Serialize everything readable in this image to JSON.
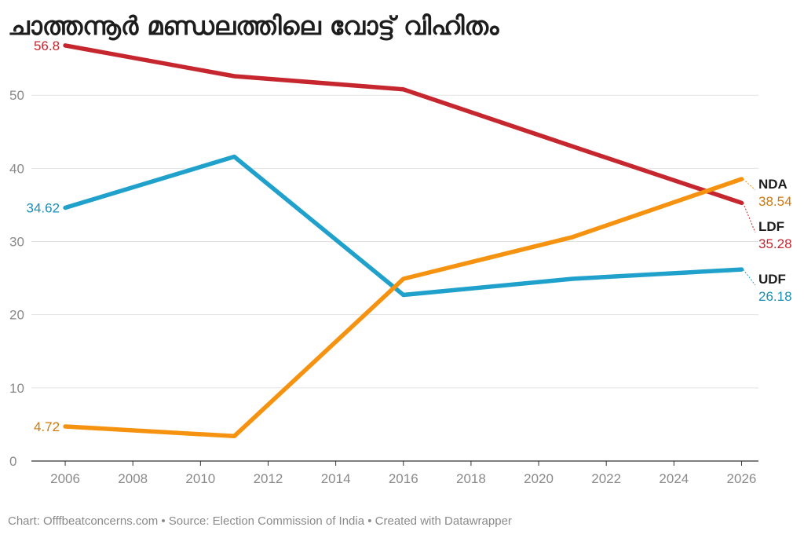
{
  "title": "ചാത്തന്നൂർ മണ്ഡലത്തിലെ വോട്ട് വിഹിതം",
  "footer": "Chart: Offfbeatconcerns.com • Source: Election Commission of India • Created with Datawrapper",
  "chart_data": {
    "type": "line",
    "title": "ചാത്തന്നൂർ മണ്ഡലത്തിലെ വോട്ട് വിഹിതം",
    "xlabel": "",
    "ylabel": "",
    "xlim": [
      2005,
      2026.5
    ],
    "ylim": [
      0,
      57
    ],
    "x_ticks": [
      "2006",
      "2008",
      "2010",
      "2012",
      "2014",
      "2016",
      "2018",
      "2020",
      "2022",
      "2024",
      "2026"
    ],
    "y_ticks": [
      "0",
      "10",
      "20",
      "30",
      "40",
      "50"
    ],
    "grid": true,
    "x": [
      2006,
      2011,
      2016,
      2021,
      2026
    ],
    "series": [
      {
        "name": "LDF",
        "color": "#c6262e",
        "values": [
          56.8,
          52.6,
          50.8,
          43.0,
          35.28
        ]
      },
      {
        "name": "UDF",
        "color": "#1fa1cc",
        "values": [
          34.62,
          41.6,
          22.7,
          24.9,
          26.18
        ]
      },
      {
        "name": "NDA",
        "color": "#f5920f",
        "values": [
          4.72,
          3.4,
          24.9,
          30.6,
          38.54
        ]
      }
    ],
    "start_labels": {
      "LDF": "56.8",
      "UDF": "34.62",
      "NDA": "4.72"
    },
    "end_labels": {
      "NDA": "38.54",
      "LDF": "35.28",
      "UDF": "26.18"
    },
    "label_text_colors": {
      "LDF": "#c6262e",
      "UDF": "#1b8fb5",
      "NDA": "#cf7a0a"
    }
  }
}
